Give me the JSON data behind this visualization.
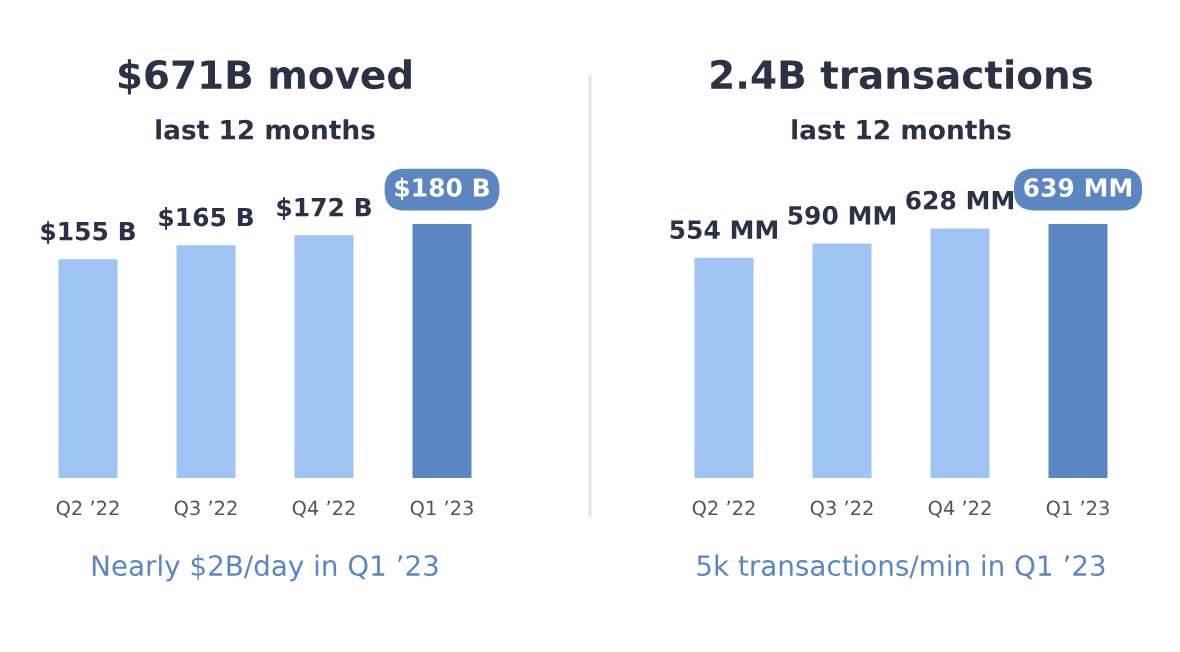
{
  "chart_data": [
    {
      "type": "bar",
      "title": "$671B moved",
      "subtitle": "last 12 months",
      "categories": [
        "Q2 ’22",
        "Q3 ’22",
        "Q4 ’22",
        "Q1 ’23"
      ],
      "values": [
        155,
        165,
        172,
        180
      ],
      "value_labels": [
        "$155 B",
        "$165 B",
        "$172 B",
        "$180 B"
      ],
      "colors": [
        "#9fc3f3",
        "#9fc3f3",
        "#9fc3f3",
        "#5b86c2"
      ],
      "annotations": [
        "Nearly $2B/day in Q1 ’23"
      ]
    },
    {
      "type": "bar",
      "title": "2.4B transactions",
      "subtitle": "last 12 months",
      "categories": [
        "Q2 ’22",
        "Q3 ’22",
        "Q4 ’22",
        "Q1 ’23"
      ],
      "values": [
        554,
        590,
        628,
        639
      ],
      "value_labels": [
        "554 MM",
        "590 MM",
        "628 MM",
        "639 MM"
      ],
      "colors": [
        "#9fc3f3",
        "#9fc3f3",
        "#9fc3f3",
        "#5b86c2"
      ],
      "annotations": [
        "5k transactions/min in Q1 ’23"
      ]
    }
  ]
}
